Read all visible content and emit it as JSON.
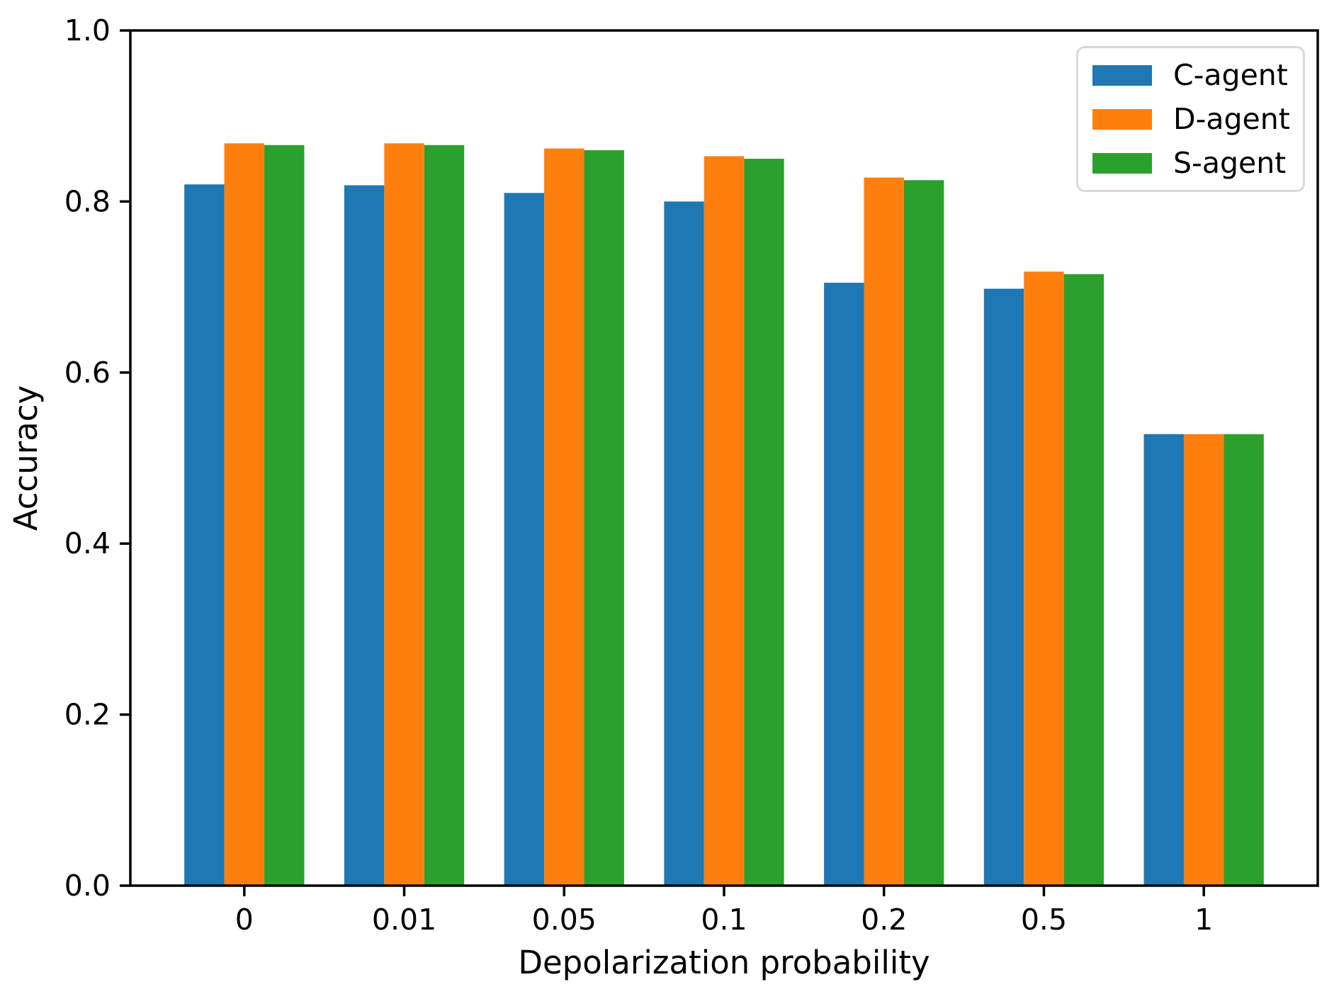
{
  "figure": {
    "background_color": "#ffffff",
    "axes_color": "#000000",
    "text_color": "#000000",
    "legend_border_color": "#d9d9d9"
  },
  "chart_data": {
    "type": "bar",
    "title": "",
    "xlabel": "Depolarization probability",
    "ylabel": "Accuracy",
    "categories": [
      "0",
      "0.01",
      "0.05",
      "0.1",
      "0.2",
      "0.5",
      "1"
    ],
    "series": [
      {
        "name": "C-agent",
        "color": "#1f77b4",
        "values": [
          0.82,
          0.819,
          0.81,
          0.8,
          0.705,
          0.698,
          0.528
        ]
      },
      {
        "name": "D-agent",
        "color": "#ff7f0e",
        "values": [
          0.868,
          0.868,
          0.862,
          0.853,
          0.828,
          0.718,
          0.528
        ]
      },
      {
        "name": "S-agent",
        "color": "#2ca02c",
        "values": [
          0.866,
          0.866,
          0.86,
          0.85,
          0.825,
          0.715,
          0.528
        ]
      }
    ],
    "ylim": [
      0.0,
      1.0
    ],
    "yticks": [
      "0.0",
      "0.2",
      "0.4",
      "0.6",
      "0.8",
      "1.0"
    ],
    "grid": false,
    "legend_position": "upper right",
    "bar_width": 0.25
  }
}
